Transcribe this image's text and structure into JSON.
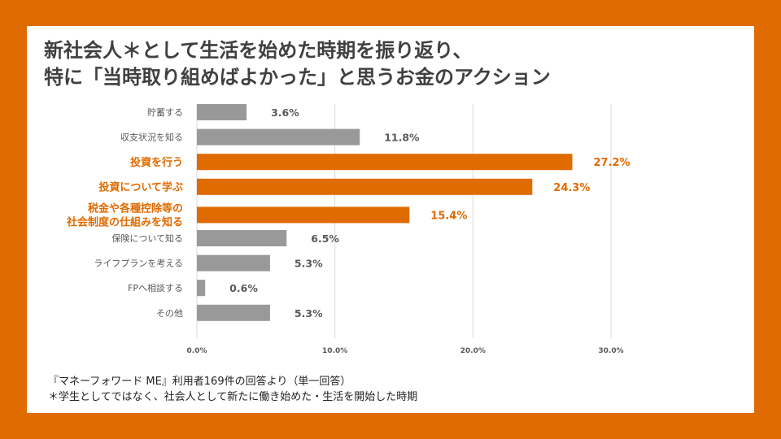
{
  "title": {
    "line1": "新社会人＊として生活を始めた時期を振り返り、",
    "line2": "特に「当時取り組めばよかった」と思うお金のアクション"
  },
  "chart_data": {
    "type": "bar",
    "orientation": "horizontal",
    "categories": [
      "貯蓄する",
      "収支状況を知る",
      "投資を行う",
      "投資について学ぶ",
      [
        "税金や各種控除等の",
        "社会制度の仕組みを知る"
      ],
      "保険について知る",
      "ライフプランを考える",
      "FPへ相談する",
      "その他"
    ],
    "values": [
      3.6,
      11.8,
      27.2,
      24.3,
      15.4,
      6.5,
      5.3,
      0.6,
      5.3
    ],
    "value_labels": [
      "3.6%",
      "11.8%",
      "27.2%",
      "24.3%",
      "15.4%",
      "6.5%",
      "5.3%",
      "0.6%",
      "5.3%"
    ],
    "highlighted": [
      false,
      false,
      true,
      true,
      true,
      false,
      false,
      false,
      false
    ],
    "xlim": [
      0,
      30
    ],
    "xticks": [
      0,
      10,
      20,
      30
    ],
    "xtick_labels": [
      "0.0%",
      "10.0%",
      "20.0%",
      "30.0%"
    ],
    "grid": "vertical",
    "colors": {
      "highlight": "#e06b00",
      "normal": "#999999",
      "normal_label": "#595959",
      "axis_text": "#595959",
      "grid": "#d9d9d9"
    }
  },
  "footnotes": {
    "source": "『マネーフォワード ME』利用者169件の回答より（単一回答）",
    "note": "＊学生としてではなく、社会人として新たに働き始めた・生活を開始した時期"
  },
  "colors": {
    "frame": "#e06b00",
    "panel": "#ffffff",
    "title": "#404040"
  }
}
